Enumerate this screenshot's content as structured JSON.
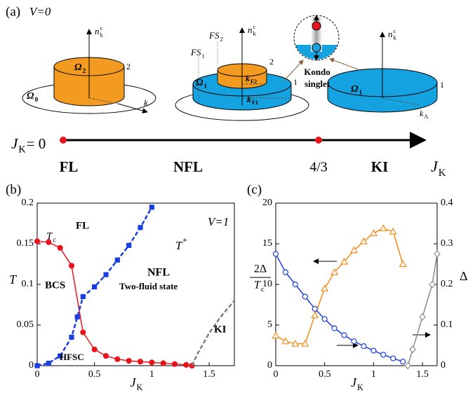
{
  "panel_a": {
    "label": "(a)",
    "condition": "V=0",
    "left_diagram": {
      "axis": {
        "text": "n",
        "sub": "k",
        "sup": "c"
      },
      "top": {
        "text": "Ω",
        "sub": "2"
      },
      "height": "2",
      "base": {
        "text": "Ω",
        "sub": "0"
      },
      "momentum": "k"
    },
    "middle_diagram": {
      "axis": {
        "text": "n",
        "sub": "k",
        "sup": "c"
      },
      "fs1": {
        "text": "FS",
        "sub": "1"
      },
      "fs2": {
        "text": "FS",
        "sub": "2"
      },
      "height_top": "2",
      "height_bottom": "1",
      "top": {
        "text": "Ω",
        "sub": "1"
      },
      "inner_momentum": {
        "text": "k",
        "sub": "F2"
      },
      "outer_momentum": {
        "text": "k",
        "sub": "F1"
      }
    },
    "kondo_label": [
      "Kondo",
      "singlet"
    ],
    "right_diagram": {
      "axis": {
        "text": "n",
        "sub": "k",
        "sup": "c"
      },
      "top": {
        "text": "Ω",
        "sub": "1"
      },
      "height": "1",
      "momentum": {
        "text": "k",
        "sub": "Λ"
      }
    },
    "phase_line": {
      "start": {
        "text": "J",
        "sub": "K",
        "after": " = 0"
      },
      "phases": [
        "FL",
        "NFL",
        "KI"
      ],
      "critical": "4/3",
      "axis": {
        "text": "J",
        "sub": "K"
      }
    }
  },
  "chart_data": [
    {
      "type": "line",
      "panel": "(b)",
      "x_label": {
        "text": "J",
        "sub": "K"
      },
      "y_label": "T",
      "xlim": [
        0,
        1.72
      ],
      "xticks": [
        0,
        0.5,
        1,
        1.5
      ],
      "ylim": [
        0,
        0.2
      ],
      "yticks": [
        0,
        0.05,
        0.1,
        0.15,
        0.2
      ],
      "series": [
        {
          "color": "#e8141c",
          "marker": "dot",
          "line_style": "solid",
          "x": [
            0,
            0.1,
            0.2,
            0.3,
            0.4,
            0.5,
            0.6,
            0.7,
            0.8,
            0.9,
            1.0,
            1.1,
            1.2,
            1.3,
            1.35
          ],
          "values": [
            0.153,
            0.152,
            0.145,
            0.123,
            0.041,
            0.02,
            0.012,
            0.008,
            0.006,
            0.005,
            0.004,
            0.003,
            0.002,
            0.001,
            0
          ]
        },
        {
          "color": "#1a3de0",
          "marker": "square",
          "line_style": "dashed",
          "x": [
            0,
            0.1,
            0.2,
            0.3,
            0.35,
            0.4,
            0.5,
            0.6,
            0.7,
            0.8,
            0.9,
            1.0
          ],
          "values": [
            0,
            0.003,
            0.012,
            0.035,
            0.06,
            0.085,
            0.097,
            0.112,
            0.13,
            0.148,
            0.17,
            0.195
          ]
        },
        {
          "color": "#808080",
          "marker": "none",
          "line_style": "dashed",
          "x": [
            1.35,
            1.4,
            1.5,
            1.6,
            1.72
          ],
          "values": [
            0,
            0.015,
            0.04,
            0.06,
            0.08
          ]
        }
      ],
      "annotations": [
        "FL",
        {
          "text": "T",
          "sup": "*"
        },
        {
          "text": "T",
          "sub": "c"
        },
        "V=1",
        "BCS",
        "NFL",
        "Two-fluid state",
        "HFSC",
        "KI"
      ]
    },
    {
      "type": "line",
      "panel": "(c)",
      "x_label": {
        "text": "J",
        "sub": "K"
      },
      "y_label": {
        "numerator": "2Δ",
        "denominator": {
          "text": "T",
          "sub": "c"
        }
      },
      "y2_label": "Δ",
      "xlim": [
        0,
        1.65
      ],
      "xticks": [
        0,
        0.5,
        1,
        1.5
      ],
      "ylim": [
        0,
        20
      ],
      "yticks": [
        0,
        5,
        10,
        15,
        20
      ],
      "y2lim": [
        0,
        0.4
      ],
      "y2ticks": [
        0,
        0.1,
        0.2,
        0.3,
        0.4
      ],
      "series": [
        {
          "color": "#f28c1c",
          "marker": "triangle",
          "line_style": "solid",
          "x": [
            0,
            0.1,
            0.2,
            0.3,
            0.4,
            0.5,
            0.6,
            0.7,
            0.8,
            0.9,
            1.0,
            1.1,
            1.2,
            1.3
          ],
          "values": [
            3.7,
            3.0,
            2.7,
            2.7,
            6.2,
            9.5,
            11.5,
            12.8,
            14.2,
            15.3,
            16.3,
            16.9,
            16.5,
            12.5
          ]
        },
        {
          "color": "#1a3de0",
          "marker": "circle",
          "line_style": "solid",
          "axis": "y2",
          "x": [
            0,
            0.1,
            0.2,
            0.3,
            0.4,
            0.5,
            0.6,
            0.7,
            0.8,
            0.9,
            1.0,
            1.1,
            1.2,
            1.3
          ],
          "values": [
            0.275,
            0.23,
            0.2,
            0.17,
            0.14,
            0.115,
            0.092,
            0.075,
            0.06,
            0.048,
            0.037,
            0.027,
            0.018,
            0.01
          ]
        },
        {
          "color": "#8c8c8c",
          "marker": "diamond",
          "line_style": "solid",
          "axis": "y2",
          "x": [
            1.35,
            1.4,
            1.5,
            1.6,
            1.65
          ],
          "values": [
            0,
            0.04,
            0.12,
            0.2,
            0.275
          ]
        }
      ],
      "annotations": []
    }
  ]
}
